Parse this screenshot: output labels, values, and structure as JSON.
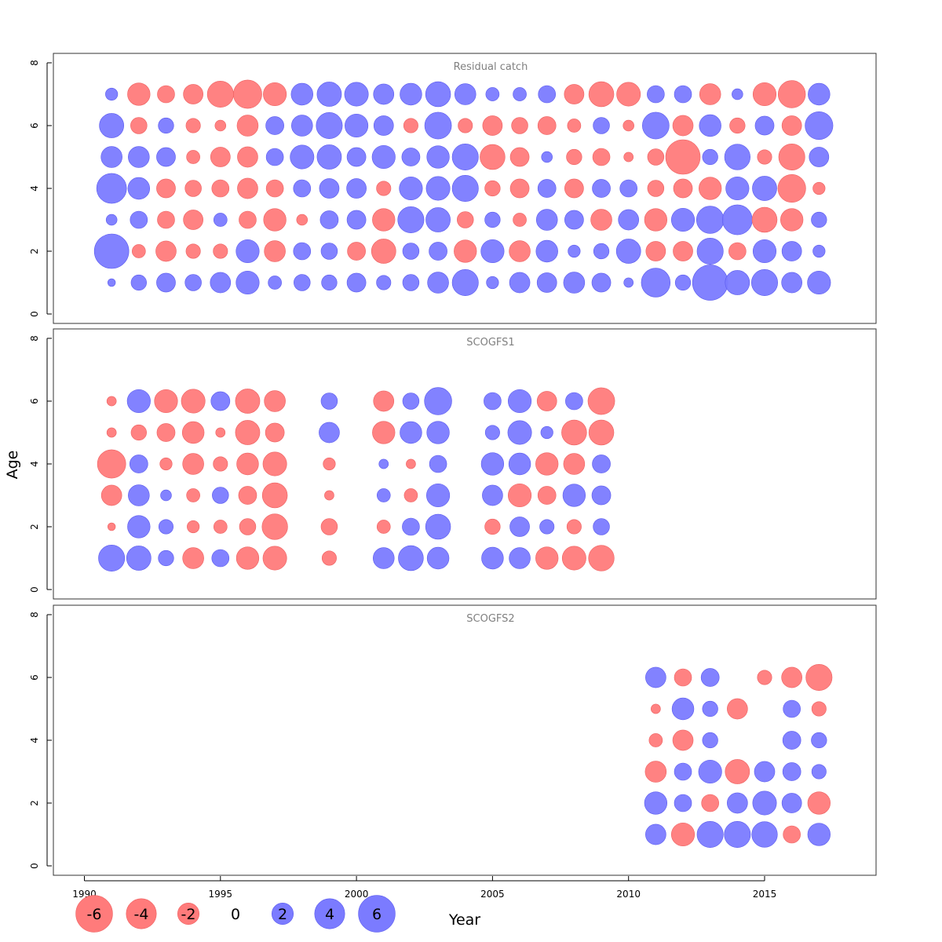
{
  "chart_data": {
    "type": "scatter",
    "subtype": "bubble",
    "xlabel": "Year",
    "ylabel": "Age",
    "xlim": [
      1989,
      2019
    ],
    "x_ticks": [
      1990,
      1995,
      2000,
      2005,
      2010,
      2015
    ],
    "y_ticks": [
      0,
      2,
      4,
      6,
      8
    ],
    "ylim": [
      0,
      8
    ],
    "colors": {
      "positive": "#7b7bff",
      "negative": "#ff7b7b",
      "frame": "#333333",
      "title": "#808080"
    },
    "legend": {
      "placement": "bottom-left",
      "entries": [
        {
          "label": "-6",
          "value": -6
        },
        {
          "label": "-4",
          "value": -4
        },
        {
          "label": "-2",
          "value": -2
        },
        {
          "label": "0",
          "value": 0
        },
        {
          "label": "2",
          "value": 2
        },
        {
          "label": "4",
          "value": 4
        },
        {
          "label": "6",
          "value": 6
        }
      ]
    },
    "panels": [
      {
        "title": "Residual catch",
        "years": [
          1991,
          1992,
          1993,
          1994,
          1995,
          1996,
          1997,
          1998,
          1999,
          2000,
          2001,
          2002,
          2003,
          2004,
          2005,
          2006,
          2007,
          2008,
          2009,
          2010,
          2011,
          2012,
          2013,
          2014,
          2015,
          2016,
          2017
        ],
        "ages": [
          1,
          2,
          3,
          4,
          5,
          6,
          7
        ],
        "residuals": [
          [
            0.2,
            0.8,
            1.2,
            0.9,
            1.4,
            1.8,
            0.6,
            0.9,
            0.8,
            1.2,
            0.7,
            0.9,
            1.5,
            2.3,
            0.5,
            1.4,
            1.3,
            1.5,
            1.2,
            0.3,
            2.8,
            0.8,
            4.2,
            2.0,
            2.3,
            1.4,
            1.8
          ],
          [
            4.0,
            -0.6,
            -1.4,
            -0.7,
            -0.7,
            1.8,
            -1.5,
            1.0,
            0.9,
            -1.1,
            -2.0,
            0.9,
            1.1,
            -1.7,
            1.8,
            -1.5,
            1.6,
            0.5,
            0.8,
            2.0,
            -1.3,
            -1.3,
            2.3,
            -1.0,
            1.8,
            1.3,
            0.5
          ],
          [
            0.4,
            1.0,
            -1.0,
            -1.3,
            0.6,
            -1.0,
            -1.7,
            -0.4,
            1.1,
            1.2,
            -1.7,
            2.3,
            2.0,
            -0.9,
            0.8,
            -0.6,
            1.5,
            1.2,
            -1.5,
            1.4,
            -1.7,
            1.8,
            2.5,
            3.0,
            -2.1,
            -1.7,
            0.8
          ],
          [
            3.0,
            1.6,
            -1.2,
            -0.9,
            -1.0,
            -1.4,
            -1.0,
            1.0,
            1.3,
            1.3,
            -0.7,
            1.8,
            1.9,
            2.3,
            -0.8,
            -1.2,
            1.1,
            -1.2,
            1.1,
            1.0,
            -0.9,
            -1.2,
            -1.7,
            1.8,
            2.0,
            -2.6,
            -0.5
          ],
          [
            1.5,
            1.5,
            1.2,
            -0.6,
            -1.3,
            -1.4,
            1.0,
            1.9,
            2.0,
            1.2,
            1.8,
            1.1,
            1.7,
            2.3,
            -2.1,
            -1.2,
            0.4,
            -0.8,
            -1.0,
            -0.3,
            -0.9,
            -4.0,
            0.8,
            2.2,
            -0.7,
            -2.3,
            1.3
          ],
          [
            2.0,
            -0.9,
            0.8,
            -0.7,
            -0.4,
            -1.5,
            1.1,
            1.5,
            2.3,
            1.8,
            1.3,
            -0.7,
            2.4,
            -0.7,
            -1.3,
            -0.9,
            -1.1,
            -0.6,
            0.9,
            -0.4,
            2.4,
            -1.4,
            1.6,
            -0.8,
            1.2,
            -1.3,
            2.6
          ],
          [
            0.5,
            -1.7,
            -1.0,
            -1.3,
            -2.3,
            -2.7,
            -1.8,
            1.6,
            2.0,
            1.9,
            1.4,
            1.6,
            2.1,
            1.5,
            0.6,
            0.6,
            1.0,
            -1.3,
            -2.1,
            -1.9,
            1.0,
            1.0,
            -1.5,
            0.4,
            -1.8,
            -2.5,
            1.6
          ]
        ]
      },
      {
        "title": "SCOGFS1",
        "years": [
          1991,
          1992,
          1993,
          1994,
          1995,
          1996,
          1997,
          1998,
          1999,
          2000,
          2001,
          2002,
          2003,
          2004,
          2005,
          2006,
          2007,
          2008,
          2009
        ],
        "ages": [
          1,
          2,
          3,
          4,
          5,
          6
        ],
        "residuals": [
          [
            2.3,
            2.0,
            0.8,
            -1.5,
            1.0,
            -1.7,
            -1.9,
            null,
            -0.7,
            null,
            1.5,
            2.1,
            1.6,
            null,
            1.6,
            1.5,
            -1.7,
            -1.9,
            -2.2
          ],
          [
            -0.2,
            1.7,
            0.7,
            -0.5,
            -0.6,
            -0.9,
            -2.2,
            null,
            -0.9,
            null,
            -0.6,
            1.0,
            2.1,
            null,
            -0.8,
            1.3,
            0.7,
            -0.7,
            0.9
          ],
          [
            -1.4,
            1.5,
            0.4,
            -0.6,
            0.9,
            -1.1,
            -2.1,
            null,
            -0.3,
            null,
            0.6,
            -0.6,
            1.8,
            null,
            1.4,
            -1.8,
            -1.1,
            1.7,
            1.2
          ],
          [
            -2.7,
            1.1,
            -0.5,
            -1.5,
            -0.7,
            -1.6,
            -1.9,
            null,
            -0.5,
            null,
            0.3,
            -0.3,
            1.0,
            null,
            1.7,
            1.6,
            -1.7,
            -1.5,
            1.1
          ],
          [
            -0.3,
            -0.8,
            -1.1,
            -1.6,
            -0.3,
            -2.0,
            -1.2,
            null,
            1.4,
            null,
            -1.7,
            1.6,
            1.7,
            null,
            0.7,
            1.9,
            0.5,
            -2.1,
            -2.1
          ],
          [
            -0.3,
            1.8,
            -1.8,
            -1.9,
            1.2,
            -2.0,
            -1.5,
            null,
            0.9,
            null,
            -1.4,
            0.9,
            2.5,
            null,
            1.0,
            1.8,
            -1.3,
            1.0,
            -2.4
          ]
        ]
      },
      {
        "title": "SCOGFS2",
        "years": [
          2011,
          2012,
          2013,
          2014,
          2015,
          2016,
          2017
        ],
        "ages": [
          1,
          2,
          3,
          4,
          5,
          6
        ],
        "residuals": [
          [
            1.4,
            -1.8,
            2.3,
            2.3,
            2.2,
            -1.0,
            1.7
          ],
          [
            1.7,
            1.0,
            -1.0,
            1.4,
            1.9,
            1.3,
            -1.7
          ],
          [
            -1.5,
            1.0,
            1.8,
            -2.0,
            1.4,
            1.1,
            0.7
          ],
          [
            -0.6,
            -1.4,
            0.8,
            null,
            null,
            1.1,
            0.8
          ],
          [
            -0.3,
            1.6,
            0.8,
            -1.4,
            null,
            1.0,
            -0.7
          ],
          [
            1.4,
            -1.0,
            1.1,
            null,
            -0.7,
            -1.4,
            -2.3
          ]
        ]
      }
    ]
  }
}
